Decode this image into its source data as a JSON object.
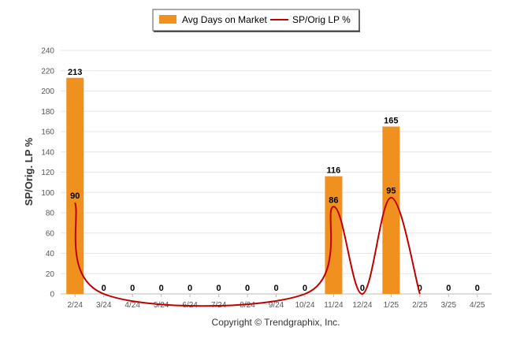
{
  "chart_data": {
    "type": "bar",
    "categories": [
      "2/24",
      "3/24",
      "4/24",
      "5/24",
      "6/24",
      "7/24",
      "8/24",
      "9/24",
      "10/24",
      "11/24",
      "12/24",
      "1/25",
      "2/25",
      "3/25",
      "4/25"
    ],
    "series": [
      {
        "name": "Avg Days on Market",
        "type": "bar",
        "color": "#F0901E",
        "values": [
          213,
          0,
          0,
          0,
          0,
          0,
          0,
          0,
          0,
          116,
          0,
          165,
          0,
          0,
          0
        ],
        "labels": [
          "213",
          "0",
          "0",
          "0",
          "0",
          "0",
          "0",
          "0",
          "0",
          "116",
          "0",
          "165",
          "0",
          "0",
          "0"
        ]
      },
      {
        "name": "SP/Orig LP %",
        "type": "line",
        "color": "#C00000",
        "points": [
          [
            0,
            90
          ],
          [
            1,
            0
          ],
          [
            8,
            0
          ],
          [
            9,
            86
          ],
          [
            10,
            0
          ],
          [
            11,
            95
          ],
          [
            12,
            0
          ]
        ],
        "labels": [
          {
            "index": 0,
            "text": "90"
          },
          {
            "index": 9,
            "text": "86"
          },
          {
            "index": 11,
            "text": "95"
          }
        ]
      }
    ],
    "ylabel": "SP/Orig. LP %",
    "ylim": [
      0,
      240
    ],
    "yticks": [
      "0",
      "20",
      "40",
      "60",
      "80",
      "100",
      "120",
      "140",
      "160",
      "180",
      "200",
      "220",
      "240"
    ],
    "grid": true,
    "legend": "top-center"
  },
  "footer": {
    "copyright": "Copyright © Trendgraphix, Inc."
  }
}
